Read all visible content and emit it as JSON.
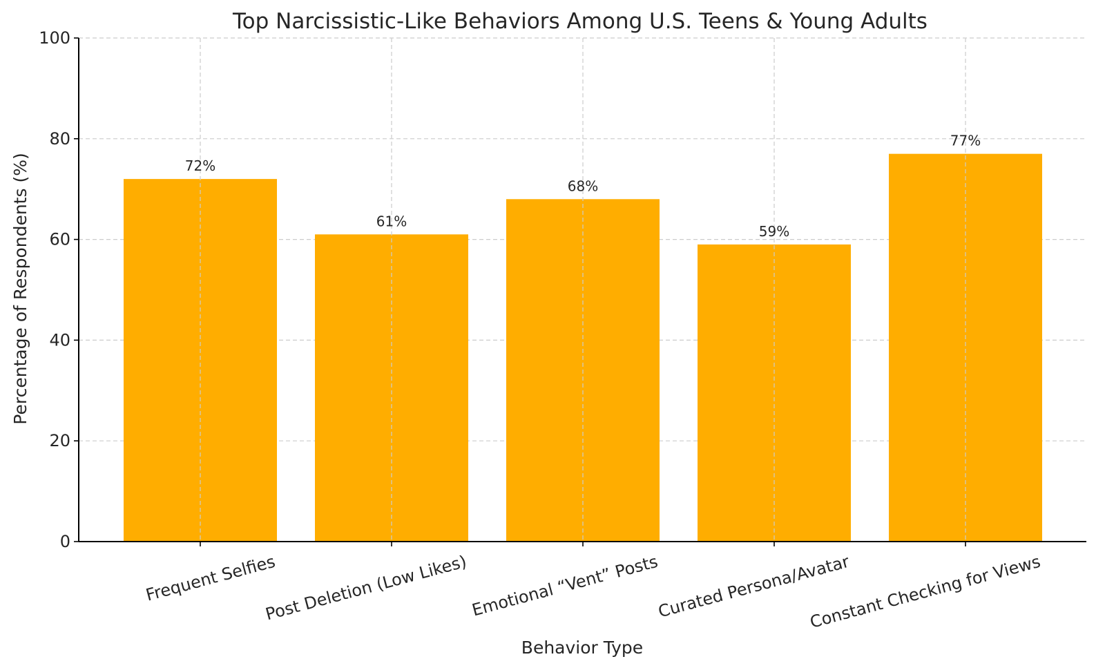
{
  "chart_data": {
    "type": "bar",
    "title": "Top Narcissistic-Like Behaviors Among U.S. Teens & Young Adults",
    "xlabel": "Behavior Type",
    "ylabel": "Percentage of Respondents (%)",
    "categories": [
      "Frequent Selfies",
      "Post Deletion (Low Likes)",
      "Emotional “Vent” Posts",
      "Curated Persona/Avatar",
      "Constant Checking for Views"
    ],
    "values": [
      72,
      61,
      68,
      59,
      77
    ],
    "data_labels": [
      "72%",
      "61%",
      "68%",
      "59%",
      "77%"
    ],
    "ylim": [
      0,
      100
    ],
    "yticks": [
      0,
      20,
      40,
      60,
      80,
      100
    ],
    "ytick_labels": [
      "0",
      "20",
      "40",
      "60",
      "80",
      "100"
    ],
    "grid": true,
    "legend": false,
    "bar_color": "#FFAD00"
  }
}
